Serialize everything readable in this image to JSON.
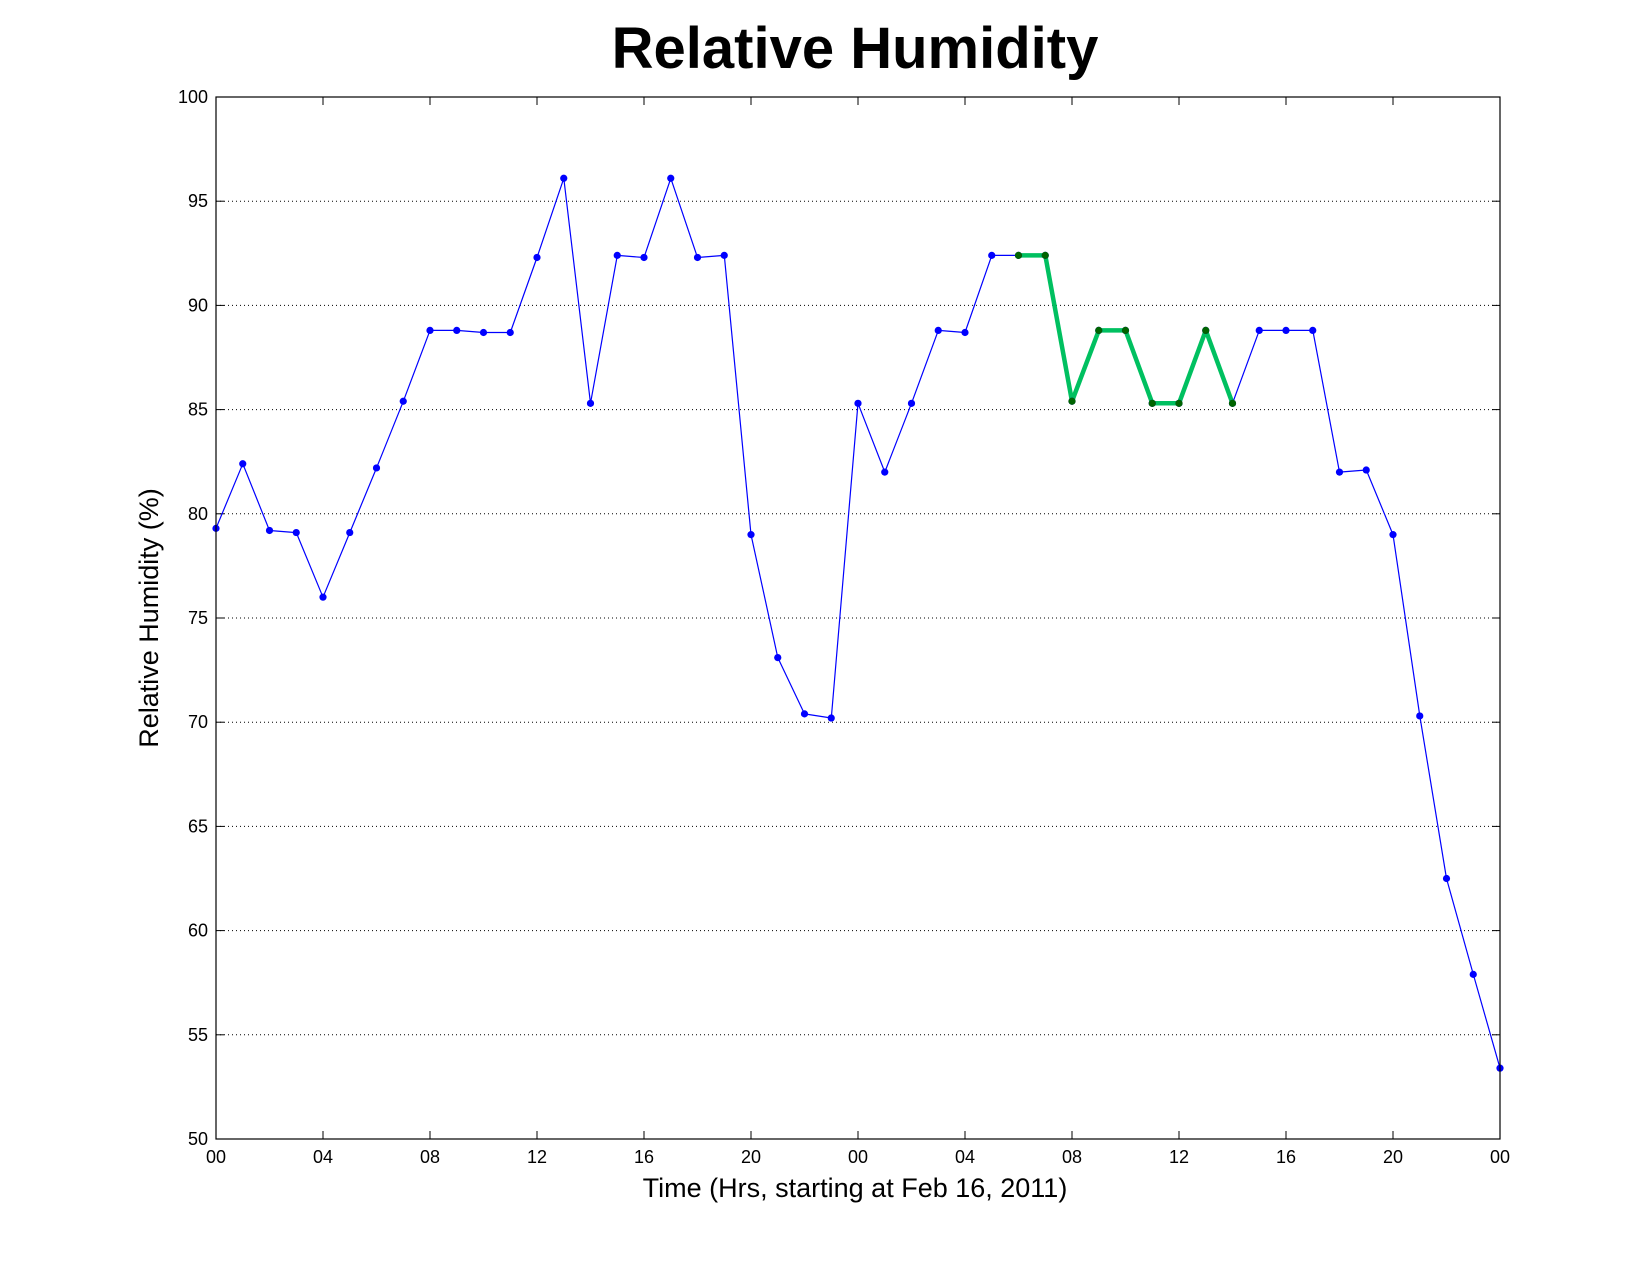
{
  "chart_data": {
    "type": "line",
    "title": "Relative Humidity",
    "xlabel": "Time (Hrs, starting at Feb 16, 2011)",
    "ylabel": "Relative Humidity (%)",
    "xlim": [
      0,
      48
    ],
    "ylim": [
      50,
      100
    ],
    "grid": true,
    "x_tick_labels": [
      "00",
      "04",
      "08",
      "12",
      "16",
      "20",
      "00",
      "04",
      "08",
      "12",
      "16",
      "20",
      "00"
    ],
    "x_tick_hours": [
      0,
      4,
      8,
      12,
      16,
      20,
      24,
      28,
      32,
      36,
      40,
      44,
      48
    ],
    "y_ticks": [
      50,
      55,
      60,
      65,
      70,
      75,
      80,
      85,
      90,
      95,
      100
    ],
    "series": [
      {
        "color": "#0000ff",
        "x": [
          0,
          1,
          2,
          3,
          4,
          5,
          6,
          7,
          8,
          9,
          10,
          11,
          12,
          13,
          14,
          15,
          16,
          17,
          18,
          19,
          20,
          21,
          22,
          23,
          24,
          25,
          26,
          27,
          28,
          29,
          30,
          31,
          32,
          33,
          34,
          35,
          36,
          37,
          38,
          39,
          40,
          41,
          42,
          43,
          44,
          45,
          46,
          47,
          48
        ],
        "values": [
          79.3,
          82.4,
          79.2,
          79.1,
          76.0,
          79.1,
          82.2,
          85.4,
          88.8,
          88.8,
          88.7,
          88.7,
          92.3,
          96.1,
          85.3,
          92.4,
          92.3,
          96.1,
          92.3,
          92.4,
          79.0,
          73.1,
          70.4,
          70.2,
          85.3,
          82.0,
          85.3,
          88.8,
          88.7,
          92.4,
          92.4,
          92.4,
          85.4,
          88.8,
          88.8,
          85.3,
          85.3,
          88.8,
          85.3,
          88.8,
          88.8,
          88.8,
          82.0,
          82.1,
          79.0,
          70.3,
          62.5,
          57.9,
          53.4
        ]
      },
      {
        "color": "#00c060",
        "marker_color": "#006400",
        "x": [
          30,
          31,
          32,
          33,
          34,
          35,
          36,
          37,
          38
        ],
        "values": [
          92.4,
          92.4,
          85.4,
          88.8,
          88.8,
          85.3,
          85.3,
          88.8,
          85.3
        ]
      }
    ]
  }
}
